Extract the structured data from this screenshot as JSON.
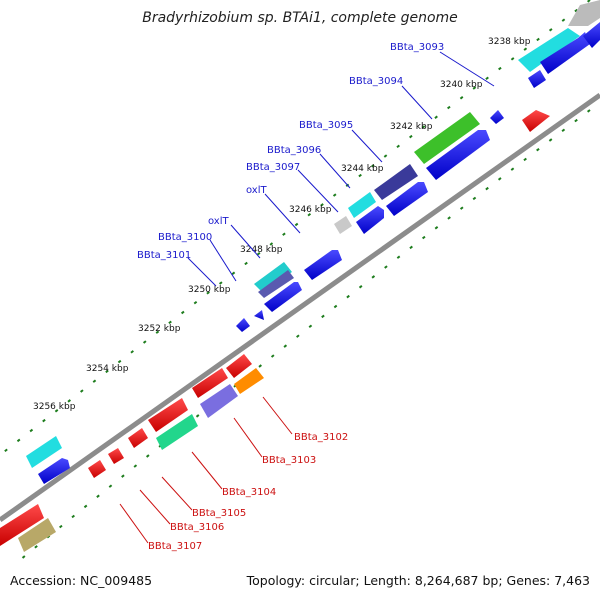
{
  "title": "Bradyrhizobium sp. BTAi1, complete genome",
  "footer": {
    "accession": "Accession: NC_009485",
    "topology": "Topology: circular; Length: 8,264,687 bp; Genes: 7,463"
  },
  "colors": {
    "backbone": "#8c8c8c",
    "forward_gene": "#1010e0",
    "reverse_gene": "#e01010",
    "forward_label": "#1a1acc",
    "reverse_label": "#cc1111",
    "tick": "#1e7d1e"
  },
  "ticks": [
    "3238 kbp",
    "3240 kbp",
    "3242 kbp",
    "3244 kbp",
    "3246 kbp",
    "3248 kbp",
    "3250 kbp",
    "3252 kbp",
    "3254 kbp",
    "3256 kbp"
  ],
  "forward_labels": [
    "BBta_3093",
    "BBta_3094",
    "BBta_3095",
    "BBta_3096",
    "BBta_3097",
    "oxlT",
    "oxlT",
    "BBta_3100",
    "BBta_3101"
  ],
  "reverse_labels": [
    "BBta_3102",
    "BBta_3103",
    "BBta_3104",
    "BBta_3105",
    "BBta_3106",
    "BBta_3107"
  ]
}
